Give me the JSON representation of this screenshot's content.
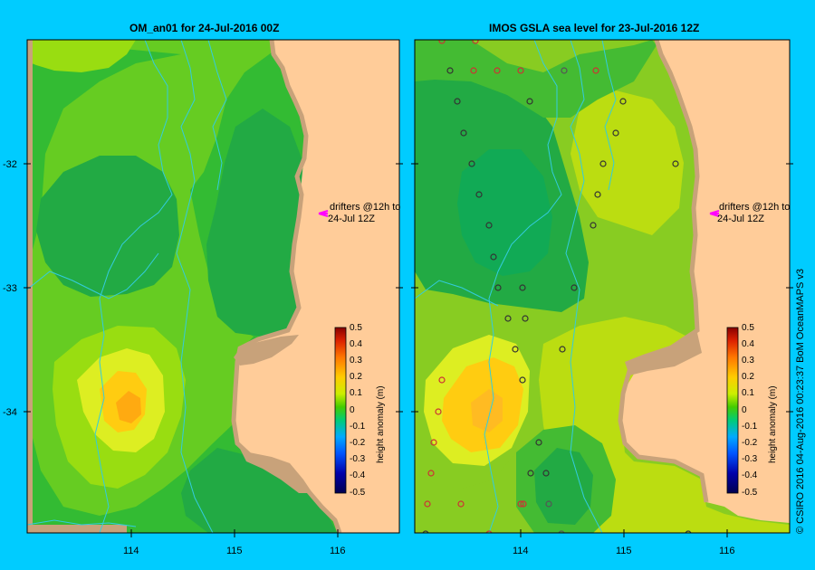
{
  "maps": [
    {
      "title": "OM_an01 for 24-Jul-2016 00Z",
      "drifter_label_line1": "drifters @12h to",
      "drifter_label_line2": "24-Jul 12Z"
    },
    {
      "title": "IMOS GSLA sea level  for 23-Jul-2016 12Z",
      "drifter_label_line1": "drifters @12h to",
      "drifter_label_line2": "24-Jul 12Z"
    }
  ],
  "axes": {
    "y_ticks": [
      "-32",
      "-33",
      "-34"
    ],
    "x_ticks": [
      "114",
      "115",
      "116"
    ]
  },
  "colorbar": {
    "label": "height anomaly (m)",
    "ticks": [
      "0.5",
      "0.4",
      "0.3",
      "0.2",
      "0.1",
      "0",
      "-0.1",
      "-0.2",
      "-0.3",
      "-0.4",
      "-0.5"
    ]
  },
  "credit": "© CSIRO 2016   04-Aug-2016 00:23:37 BoM OceanMAPS v3",
  "colors": {
    "background": "#00ccff",
    "land": "#ffcc99",
    "coast": "#c8a27a",
    "drifter_arrow": "#ff00ff"
  }
}
